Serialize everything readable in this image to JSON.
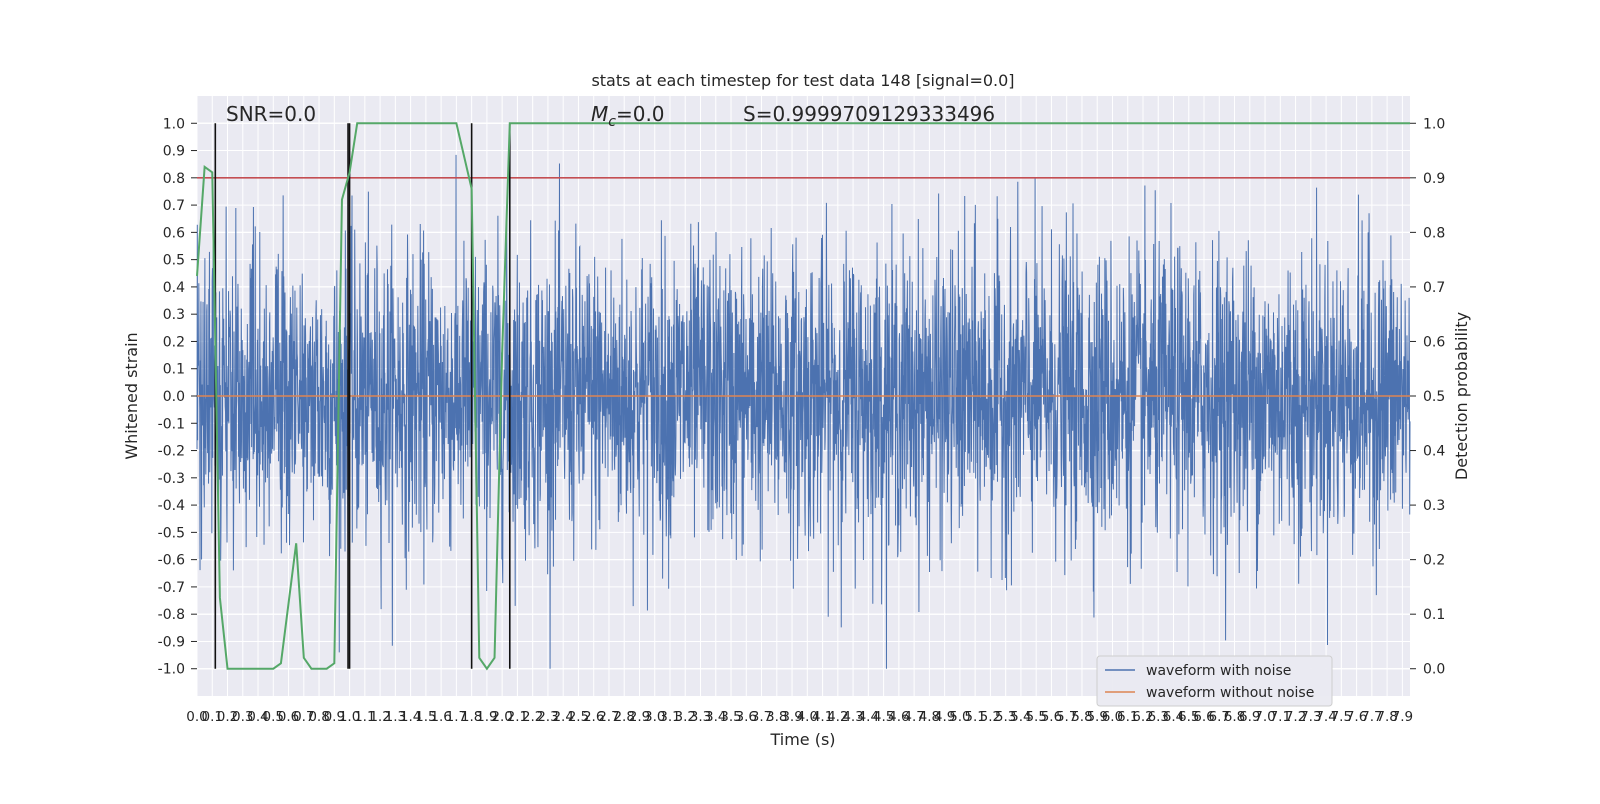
{
  "chart_data": {
    "type": "line",
    "title": "stats at each timestep for test data 148 [signal=0.0]",
    "xlabel": "Time (s)",
    "ylabel": "Whitened strain",
    "y2label": "Detection probability",
    "xlim": [
      0.0,
      7.95
    ],
    "ylim": [
      -1.1,
      1.1
    ],
    "y2lim": [
      -0.05,
      1.05
    ],
    "x_tick_labels": [
      "0.0",
      "0.1",
      "0.2",
      "0.3",
      "0.4",
      "0.5",
      "0.6",
      "0.7",
      "0.8",
      "0.9",
      "1.0",
      "1.1",
      "1.2",
      "1.3",
      "1.4",
      "1.5",
      "1.6",
      "1.7",
      "1.8",
      "1.9",
      "2.0",
      "2.1",
      "2.2",
      "2.3",
      "2.4",
      "2.5",
      "2.6",
      "2.7",
      "2.8",
      "2.9",
      "3.0",
      "3.1",
      "3.2",
      "3.3",
      "3.4",
      "3.5",
      "3.6",
      "3.7",
      "3.8",
      "3.9",
      "4.0",
      "4.1",
      "4.2",
      "4.3",
      "4.4",
      "4.5",
      "4.6",
      "4.7",
      "4.8",
      "4.9",
      "5.0",
      "5.1",
      "5.2",
      "5.3",
      "5.4",
      "5.5",
      "5.6",
      "5.7",
      "5.8",
      "5.9",
      "6.0",
      "6.1",
      "6.2",
      "6.3",
      "6.4",
      "6.5",
      "6.6",
      "6.7",
      "6.8",
      "6.9",
      "7.0",
      "7.1",
      "7.2",
      "7.3",
      "7.4",
      "7.5",
      "7.6",
      "7.7",
      "7.8",
      "7.9"
    ],
    "y_tick_labels": [
      "1.0",
      "0.9",
      "0.8",
      "0.7",
      "0.6",
      "0.5",
      "0.4",
      "0.3",
      "0.2",
      "0.1",
      "0.0",
      "-0.1",
      "-0.2",
      "-0.3",
      "-0.4",
      "-0.5",
      "-0.6",
      "-0.7",
      "-0.8",
      "-0.9",
      "-1.0"
    ],
    "y2_tick_labels": [
      "1.0",
      "0.9",
      "0.8",
      "0.7",
      "0.6",
      "0.5",
      "0.4",
      "0.3",
      "0.2",
      "0.1",
      "0.0"
    ],
    "annotations": {
      "snr": "SNR=0.0",
      "mc_symbol": "M",
      "mc_sub": "c",
      "mc_value": "=0.0",
      "s": "S=0.9999709129333496"
    },
    "series": [
      {
        "name": "waveform with noise",
        "color": "#4c72b0",
        "axis": "left",
        "amplitude_range": [
          -1.0,
          1.0
        ]
      },
      {
        "name": "waveform without noise",
        "color": "#dd8452",
        "axis": "left",
        "values": "constant 0.0"
      }
    ],
    "detection_probability": {
      "color": "#55a868",
      "axis": "right",
      "x": [
        0.0,
        0.05,
        0.1,
        0.15,
        0.2,
        0.25,
        0.3,
        0.4,
        0.5,
        0.55,
        0.6,
        0.65,
        0.7,
        0.75,
        0.8,
        0.85,
        0.9,
        0.95,
        1.0,
        1.05,
        1.1,
        1.15,
        1.2,
        1.3,
        1.4,
        1.5,
        1.6,
        1.7,
        1.8,
        1.85,
        1.9,
        1.95,
        2.0,
        2.05,
        2.1,
        2.15,
        2.2,
        2.5,
        3.0,
        4.0,
        5.0,
        6.0,
        7.0,
        7.95
      ],
      "y": [
        0.72,
        0.92,
        0.91,
        0.13,
        0.0,
        0.0,
        0.0,
        0.0,
        0.0,
        0.01,
        0.12,
        0.23,
        0.02,
        0.0,
        0.0,
        0.0,
        0.01,
        0.86,
        0.91,
        1.0,
        1.0,
        1.0,
        1.0,
        1.0,
        1.0,
        1.0,
        1.0,
        1.0,
        0.88,
        0.02,
        0.0,
        0.02,
        0.58,
        1.0,
        1.0,
        1.0,
        1.0,
        1.0,
        1.0,
        1.0,
        1.0,
        1.0,
        1.0,
        1.0
      ]
    },
    "threshold": {
      "color": "#c44e52",
      "axis": "right",
      "value": 0.9
    },
    "vertical_markers": {
      "color": "#111111",
      "x": [
        0.12,
        0.99,
        1.0,
        1.8,
        2.05
      ]
    },
    "legend": "lower-right",
    "grid": true
  }
}
